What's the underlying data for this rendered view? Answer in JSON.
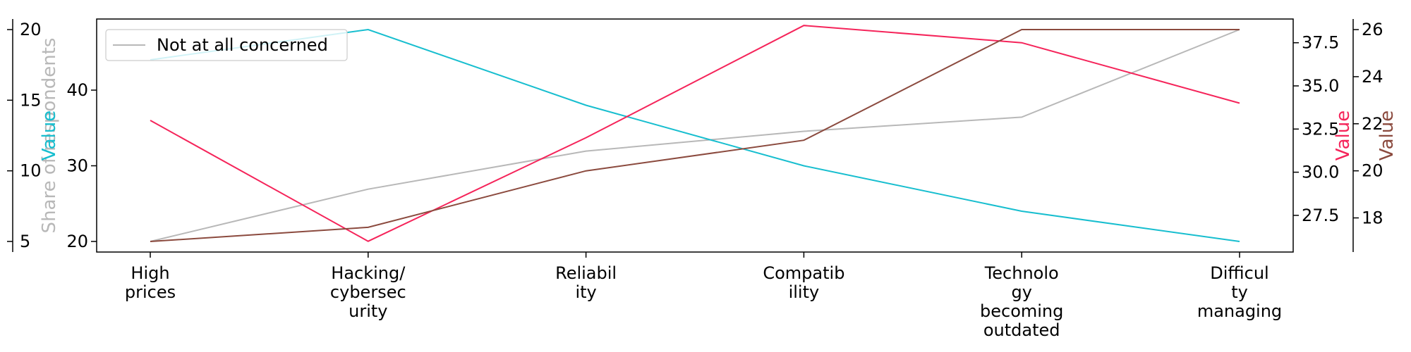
{
  "chart_data": {
    "type": "line",
    "categories": [
      [
        "High",
        "prices"
      ],
      [
        "Hacking/",
        "cybersec",
        "urity"
      ],
      [
        "Reliabil",
        "ity"
      ],
      [
        "Compatib",
        "ility"
      ],
      [
        "Technolo",
        "gy",
        "becoming",
        "outdated"
      ],
      [
        "Difficul",
        "ty",
        "managing"
      ]
    ],
    "series": [
      {
        "name": "Not at all concerned",
        "color": "#b8b8b8",
        "axis": "left-outer",
        "values": [
          5,
          8.7,
          11.4,
          12.8,
          13.8,
          20
        ]
      },
      {
        "name": "",
        "color": "#17becf",
        "axis": "left-inner",
        "values": [
          44,
          48,
          38,
          30,
          24,
          20
        ]
      },
      {
        "name": "",
        "color": "#f5245a",
        "axis": "right-inner",
        "values": [
          33,
          26,
          32,
          38.5,
          37.5,
          34
        ]
      },
      {
        "name": "",
        "color": "#8b4a3e",
        "axis": "right-outer",
        "values": [
          17,
          17.6,
          20,
          21.3,
          26,
          26
        ]
      }
    ],
    "axes": {
      "left-outer": {
        "label": "Share of respondents",
        "color": "#b8b8b8",
        "range": [
          4.25,
          20.75
        ],
        "ticks": [
          5,
          10,
          15,
          20
        ]
      },
      "left-inner": {
        "label": "Value",
        "color": "#17becf",
        "range": [
          18.6,
          49.4
        ],
        "ticks": [
          20,
          30,
          40
        ]
      },
      "right-inner": {
        "label": "Value",
        "color": "#f5245a",
        "range": [
          25.375,
          38.875
        ],
        "ticks": [
          27.5,
          30.0,
          32.5,
          35.0,
          37.5
        ],
        "tick_labels": [
          "27.5",
          "30.0",
          "32.5",
          "35.0",
          "37.5"
        ]
      },
      "right-outer": {
        "label": "Value",
        "color": "#8b4a3e",
        "range": [
          16.55,
          26.45
        ],
        "ticks": [
          18,
          20,
          22,
          24,
          26
        ]
      }
    },
    "legend": {
      "placement": "top-left"
    },
    "grid": false
  }
}
